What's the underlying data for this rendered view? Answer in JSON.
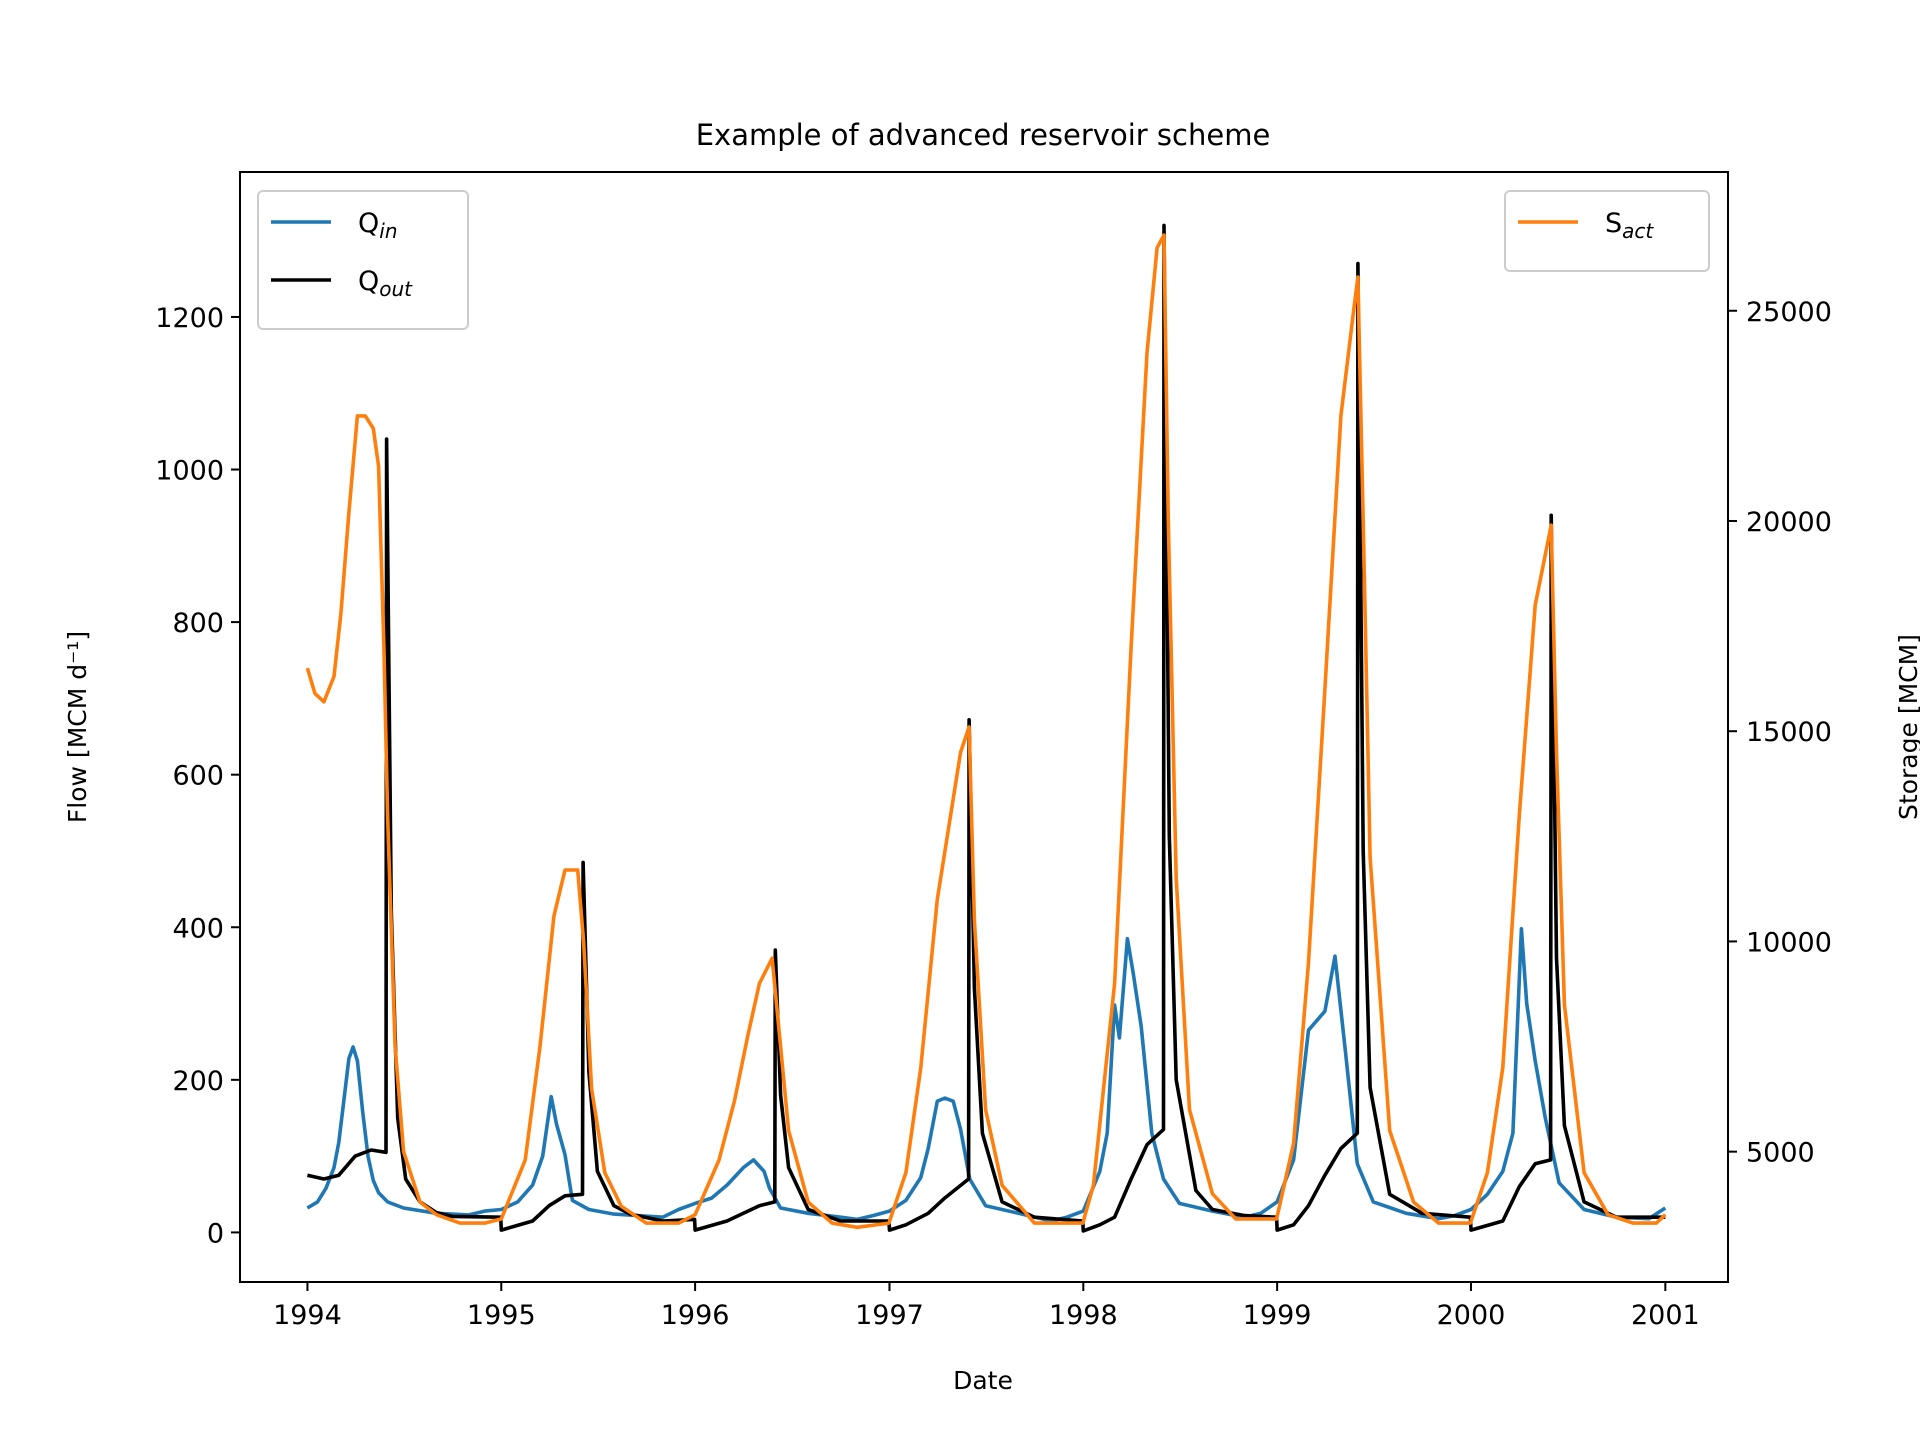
{
  "chart_data": {
    "type": "line",
    "title": "Example of advanced reservoir scheme",
    "xlabel": "Date",
    "ylabel": "Flow [MCM d⁻¹]",
    "y2label": "Storage [MCM]",
    "xlim": [
      "1993-08-27",
      "2001-04-29"
    ],
    "ylim": [
      -65,
      1390
    ],
    "y2lim": [
      1900,
      28300
    ],
    "xticks": [
      "1994",
      "1995",
      "1996",
      "1997",
      "1998",
      "1999",
      "2000",
      "2001"
    ],
    "yticks": [
      0,
      200,
      400,
      600,
      800,
      1000,
      1200
    ],
    "y2ticks": [
      5000,
      10000,
      15000,
      20000,
      25000
    ],
    "grid": false,
    "legend_left": {
      "position": "upper left",
      "entries": [
        {
          "base": "Q",
          "sub": "in",
          "color": "#1f77b4"
        },
        {
          "base": "Q",
          "sub": "out",
          "color": "#000000"
        }
      ]
    },
    "legend_right": {
      "position": "upper right",
      "entries": [
        {
          "base": "S",
          "sub": "act",
          "color": "#ff7f0e"
        }
      ]
    },
    "series": [
      {
        "name": "Qin",
        "axis": "left",
        "color": "#1f77b4",
        "points": [
          [
            "1994-01-01",
            32
          ],
          [
            "1994-01-20",
            40
          ],
          [
            "1994-02-05",
            58
          ],
          [
            "1994-02-20",
            85
          ],
          [
            "1994-03-01",
            118
          ],
          [
            "1994-03-10",
            170
          ],
          [
            "1994-03-20",
            228
          ],
          [
            "1994-03-28",
            243
          ],
          [
            "1994-04-05",
            225
          ],
          [
            "1994-04-15",
            158
          ],
          [
            "1994-04-25",
            100
          ],
          [
            "1994-05-05",
            68
          ],
          [
            "1994-05-15",
            52
          ],
          [
            "1994-06-01",
            40
          ],
          [
            "1994-07-01",
            32
          ],
          [
            "1994-09-01",
            25
          ],
          [
            "1994-11-01",
            23
          ],
          [
            "1994-12-01",
            28
          ],
          [
            "1995-01-01",
            30
          ],
          [
            "1995-02-01",
            40
          ],
          [
            "1995-03-01",
            62
          ],
          [
            "1995-03-20",
            100
          ],
          [
            "1995-04-05",
            178
          ],
          [
            "1995-04-15",
            142
          ],
          [
            "1995-05-01",
            102
          ],
          [
            "1995-05-15",
            42
          ],
          [
            "1995-06-15",
            30
          ],
          [
            "1995-08-01",
            24
          ],
          [
            "1995-11-01",
            20
          ],
          [
            "1995-12-01",
            30
          ],
          [
            "1996-01-01",
            38
          ],
          [
            "1996-02-01",
            45
          ],
          [
            "1996-03-01",
            62
          ],
          [
            "1996-04-01",
            85
          ],
          [
            "1996-04-20",
            95
          ],
          [
            "1996-05-10",
            80
          ],
          [
            "1996-05-20",
            58
          ],
          [
            "1996-06-10",
            32
          ],
          [
            "1996-08-01",
            25
          ],
          [
            "1996-10-01",
            20
          ],
          [
            "1996-11-01",
            17
          ],
          [
            "1996-12-01",
            22
          ],
          [
            "1997-01-01",
            28
          ],
          [
            "1997-02-01",
            42
          ],
          [
            "1997-03-01",
            72
          ],
          [
            "1997-03-15",
            110
          ],
          [
            "1997-04-01",
            172
          ],
          [
            "1997-04-15",
            176
          ],
          [
            "1997-05-01",
            172
          ],
          [
            "1997-05-15",
            135
          ],
          [
            "1997-06-01",
            70
          ],
          [
            "1997-07-01",
            35
          ],
          [
            "1997-09-01",
            25
          ],
          [
            "1997-11-01",
            15
          ],
          [
            "1997-12-01",
            20
          ],
          [
            "1998-01-01",
            28
          ],
          [
            "1998-02-01",
            80
          ],
          [
            "1998-02-15",
            130
          ],
          [
            "1998-03-01",
            298
          ],
          [
            "1998-03-10",
            255
          ],
          [
            "1998-03-25",
            385
          ],
          [
            "1998-04-05",
            340
          ],
          [
            "1998-04-20",
            270
          ],
          [
            "1998-05-10",
            130
          ],
          [
            "1998-06-01",
            70
          ],
          [
            "1998-07-01",
            38
          ],
          [
            "1998-09-01",
            28
          ],
          [
            "1998-11-01",
            20
          ],
          [
            "1998-12-01",
            25
          ],
          [
            "1999-01-01",
            40
          ],
          [
            "1999-02-01",
            95
          ],
          [
            "1999-03-01",
            265
          ],
          [
            "1999-04-01",
            290
          ],
          [
            "1999-04-20",
            362
          ],
          [
            "1999-05-10",
            235
          ],
          [
            "1999-06-01",
            90
          ],
          [
            "1999-07-01",
            40
          ],
          [
            "1999-09-01",
            25
          ],
          [
            "1999-11-01",
            18
          ],
          [
            "1999-12-01",
            22
          ],
          [
            "2000-01-01",
            30
          ],
          [
            "2000-02-01",
            50
          ],
          [
            "2000-03-01",
            80
          ],
          [
            "2000-03-20",
            130
          ],
          [
            "2000-04-05",
            398
          ],
          [
            "2000-04-15",
            300
          ],
          [
            "2000-05-01",
            225
          ],
          [
            "2000-05-20",
            150
          ],
          [
            "2000-06-15",
            65
          ],
          [
            "2000-08-01",
            30
          ],
          [
            "2000-10-01",
            20
          ],
          [
            "2000-12-01",
            18
          ],
          [
            "2001-01-01",
            32
          ]
        ]
      },
      {
        "name": "Qout",
        "axis": "left",
        "color": "#000000",
        "points": [
          [
            "1994-01-01",
            75
          ],
          [
            "1994-02-01",
            70
          ],
          [
            "1994-03-01",
            75
          ],
          [
            "1994-04-01",
            100
          ],
          [
            "1994-05-01",
            108
          ],
          [
            "1994-05-29",
            105
          ],
          [
            "1994-05-30",
            1040
          ],
          [
            "1994-06-08",
            420
          ],
          [
            "1994-06-20",
            150
          ],
          [
            "1994-07-05",
            70
          ],
          [
            "1994-08-01",
            40
          ],
          [
            "1994-09-01",
            26
          ],
          [
            "1994-10-01",
            21
          ],
          [
            "1994-12-31",
            20
          ],
          [
            "1995-01-01",
            3
          ],
          [
            "1995-03-01",
            15
          ],
          [
            "1995-04-01",
            35
          ],
          [
            "1995-05-01",
            48
          ],
          [
            "1995-06-03",
            50
          ],
          [
            "1995-06-04",
            485
          ],
          [
            "1995-06-15",
            210
          ],
          [
            "1995-07-01",
            80
          ],
          [
            "1995-08-01",
            35
          ],
          [
            "1995-09-01",
            24
          ],
          [
            "1995-11-01",
            15
          ],
          [
            "1995-12-31",
            17
          ],
          [
            "1996-01-01",
            3
          ],
          [
            "1996-03-01",
            15
          ],
          [
            "1996-04-01",
            25
          ],
          [
            "1996-05-01",
            35
          ],
          [
            "1996-05-30",
            40
          ],
          [
            "1996-05-31",
            370
          ],
          [
            "1996-06-10",
            180
          ],
          [
            "1996-06-25",
            85
          ],
          [
            "1996-08-01",
            30
          ],
          [
            "1996-10-01",
            15
          ],
          [
            "1996-12-31",
            15
          ],
          [
            "1997-01-01",
            3
          ],
          [
            "1997-02-01",
            10
          ],
          [
            "1997-03-15",
            25
          ],
          [
            "1997-04-15",
            45
          ],
          [
            "1997-05-30",
            70
          ],
          [
            "1997-05-31",
            672
          ],
          [
            "1997-06-10",
            320
          ],
          [
            "1997-06-25",
            130
          ],
          [
            "1997-08-01",
            40
          ],
          [
            "1997-10-01",
            20
          ],
          [
            "1997-12-31",
            15
          ],
          [
            "1998-01-01",
            2
          ],
          [
            "1998-02-01",
            10
          ],
          [
            "1998-03-01",
            20
          ],
          [
            "1998-04-01",
            70
          ],
          [
            "1998-05-01",
            115
          ],
          [
            "1998-06-01",
            135
          ],
          [
            "1998-06-02",
            1320
          ],
          [
            "1998-06-12",
            520
          ],
          [
            "1998-06-25",
            200
          ],
          [
            "1998-08-01",
            55
          ],
          [
            "1998-09-01",
            30
          ],
          [
            "1998-11-01",
            22
          ],
          [
            "1998-12-31",
            20
          ],
          [
            "1999-01-01",
            3
          ],
          [
            "1999-02-01",
            10
          ],
          [
            "1999-03-01",
            35
          ],
          [
            "1999-04-01",
            75
          ],
          [
            "1999-05-01",
            110
          ],
          [
            "1999-06-01",
            130
          ],
          [
            "1999-06-02",
            1270
          ],
          [
            "1999-06-12",
            500
          ],
          [
            "1999-06-25",
            190
          ],
          [
            "1999-08-01",
            50
          ],
          [
            "1999-10-01",
            25
          ],
          [
            "1999-12-31",
            20
          ],
          [
            "2000-01-01",
            3
          ],
          [
            "2000-03-01",
            15
          ],
          [
            "2000-04-01",
            60
          ],
          [
            "2000-05-01",
            90
          ],
          [
            "2000-05-30",
            95
          ],
          [
            "2000-05-31",
            940
          ],
          [
            "2000-06-10",
            360
          ],
          [
            "2000-06-25",
            140
          ],
          [
            "2000-08-01",
            40
          ],
          [
            "2000-10-01",
            20
          ],
          [
            "2001-01-01",
            20
          ]
        ]
      },
      {
        "name": "Sact",
        "axis": "right",
        "color": "#ff7f0e",
        "points": [
          [
            "1994-01-01",
            16500
          ],
          [
            "1994-01-15",
            15900
          ],
          [
            "1994-02-01",
            15700
          ],
          [
            "1994-02-20",
            16300
          ],
          [
            "1994-03-05",
            17800
          ],
          [
            "1994-03-20",
            20200
          ],
          [
            "1994-04-05",
            22500
          ],
          [
            "1994-04-20",
            22500
          ],
          [
            "1994-05-05",
            22200
          ],
          [
            "1994-05-15",
            21300
          ],
          [
            "1994-05-25",
            17000
          ],
          [
            "1994-06-01",
            13000
          ],
          [
            "1994-06-15",
            7500
          ],
          [
            "1994-07-01",
            5000
          ],
          [
            "1994-08-01",
            3800
          ],
          [
            "1994-09-01",
            3500
          ],
          [
            "1994-10-15",
            3300
          ],
          [
            "1994-12-01",
            3300
          ],
          [
            "1995-01-01",
            3400
          ],
          [
            "1995-02-15",
            4800
          ],
          [
            "1995-03-15",
            7500
          ],
          [
            "1995-04-10",
            10600
          ],
          [
            "1995-05-01",
            11700
          ],
          [
            "1995-05-25",
            11700
          ],
          [
            "1995-06-05",
            10000
          ],
          [
            "1995-06-20",
            6500
          ],
          [
            "1995-07-15",
            4500
          ],
          [
            "1995-08-15",
            3700
          ],
          [
            "1995-10-01",
            3300
          ],
          [
            "1995-12-01",
            3300
          ],
          [
            "1996-01-01",
            3500
          ],
          [
            "1996-02-15",
            4800
          ],
          [
            "1996-03-15",
            6200
          ],
          [
            "1996-04-10",
            7800
          ],
          [
            "1996-05-01",
            9000
          ],
          [
            "1996-05-25",
            9600
          ],
          [
            "1996-06-10",
            7500
          ],
          [
            "1996-06-25",
            5500
          ],
          [
            "1996-08-01",
            3800
          ],
          [
            "1996-09-15",
            3300
          ],
          [
            "1996-11-01",
            3200
          ],
          [
            "1996-12-31",
            3300
          ],
          [
            "1997-02-01",
            4500
          ],
          [
            "1997-03-01",
            7000
          ],
          [
            "1997-04-01",
            11000
          ],
          [
            "1997-05-15",
            14500
          ],
          [
            "1997-05-31",
            15100
          ],
          [
            "1997-06-10",
            10500
          ],
          [
            "1997-07-01",
            6000
          ],
          [
            "1997-08-01",
            4200
          ],
          [
            "1997-10-01",
            3300
          ],
          [
            "1997-12-31",
            3300
          ],
          [
            "1998-01-20",
            4200
          ],
          [
            "1998-03-01",
            9000
          ],
          [
            "1998-04-01",
            17000
          ],
          [
            "1998-05-01",
            24000
          ],
          [
            "1998-05-20",
            26500
          ],
          [
            "1998-06-02",
            26800
          ],
          [
            "1998-06-10",
            20000
          ],
          [
            "1998-06-25",
            11500
          ],
          [
            "1998-07-20",
            6000
          ],
          [
            "1998-09-01",
            4000
          ],
          [
            "1998-10-15",
            3400
          ],
          [
            "1998-12-31",
            3400
          ],
          [
            "1999-02-01",
            5200
          ],
          [
            "1999-03-01",
            9500
          ],
          [
            "1999-04-01",
            16000
          ],
          [
            "1999-05-01",
            22500
          ],
          [
            "1999-05-25",
            25000
          ],
          [
            "1999-06-02",
            25800
          ],
          [
            "1999-06-12",
            20000
          ],
          [
            "1999-06-25",
            12000
          ],
          [
            "1999-08-01",
            5500
          ],
          [
            "1999-09-15",
            3800
          ],
          [
            "1999-11-01",
            3300
          ],
          [
            "1999-12-31",
            3300
          ],
          [
            "2000-02-01",
            4500
          ],
          [
            "2000-03-01",
            7000
          ],
          [
            "2000-04-01",
            13000
          ],
          [
            "2000-05-01",
            18000
          ],
          [
            "2000-05-31",
            19900
          ],
          [
            "2000-06-10",
            14500
          ],
          [
            "2000-06-25",
            8500
          ],
          [
            "2000-08-01",
            4500
          ],
          [
            "2000-09-15",
            3500
          ],
          [
            "2000-11-01",
            3300
          ],
          [
            "2000-12-15",
            3300
          ],
          [
            "2001-01-01",
            3500
          ]
        ]
      }
    ]
  }
}
